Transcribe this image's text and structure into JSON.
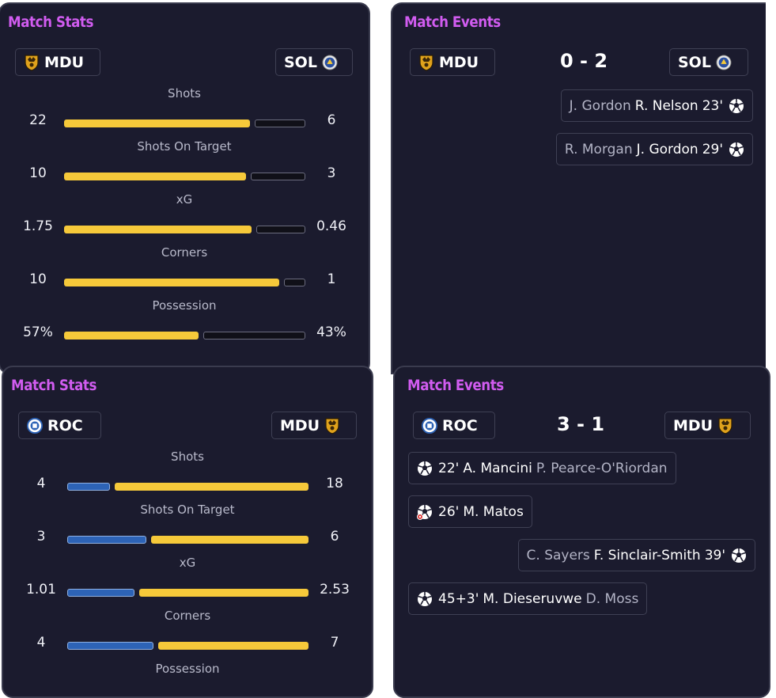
{
  "colors": {
    "home_bar": "#f6c93a",
    "away_bar_dark": "#101018",
    "away_bar_blue": "#2d63b6",
    "title": "#d15cf0"
  },
  "panel1": {
    "title": "Match Stats",
    "home_team": "MDU",
    "away_team": "SOL",
    "stats": [
      {
        "label": "Shots",
        "home": "22",
        "away": "6",
        "home_frac": 0.786
      },
      {
        "label": "Shots On Target",
        "home": "10",
        "away": "3",
        "home_frac": 0.769
      },
      {
        "label": "xG",
        "home": "1.75",
        "away": "0.46",
        "home_frac": 0.792
      },
      {
        "label": "Corners",
        "home": "10",
        "away": "1",
        "home_frac": 0.909
      },
      {
        "label": "Possession",
        "home": "57%",
        "away": "43%",
        "home_frac": 0.57
      }
    ]
  },
  "panel2": {
    "title": "Match Events",
    "home_team": "MDU",
    "away_team": "SOL",
    "score": "0 - 2",
    "events": [
      {
        "side": "away",
        "assist": "J. Gordon",
        "scorer": "R. Nelson",
        "minute": "23'",
        "icon": "goal-ball-icon"
      },
      {
        "side": "away",
        "assist": "R. Morgan",
        "scorer": "J. Gordon",
        "minute": "29'",
        "icon": "goal-ball-icon"
      }
    ]
  },
  "panel3": {
    "title": "Match Stats",
    "home_team": "ROC",
    "away_team": "MDU",
    "stats": [
      {
        "label": "Shots",
        "home": "4",
        "away": "18",
        "home_frac": 0.182
      },
      {
        "label": "Shots On Target",
        "home": "3",
        "away": "6",
        "home_frac": 0.333
      },
      {
        "label": "xG",
        "home": "1.01",
        "away": "2.53",
        "home_frac": 0.285
      },
      {
        "label": "Corners",
        "home": "4",
        "away": "7",
        "home_frac": 0.364
      },
      {
        "label": "Possession"
      }
    ]
  },
  "panel4": {
    "title": "Match Events",
    "home_team": "ROC",
    "away_team": "MDU",
    "score": "3 - 1",
    "events": [
      {
        "side": "home",
        "minute": "22'",
        "scorer": "A. Mancini",
        "assist": "P. Pearce-O'Riordan",
        "icon": "goal-ball-icon"
      },
      {
        "side": "home",
        "minute": "26'",
        "scorer": "M. Matos",
        "assist": "",
        "icon": "penalty-goal-icon"
      },
      {
        "side": "away",
        "assist": "C. Sayers",
        "scorer": "F. Sinclair-Smith",
        "minute": "39'",
        "icon": "goal-ball-icon"
      },
      {
        "side": "home",
        "minute": "45+3'",
        "scorer": "M. Dieseruvwe",
        "assist": "D. Moss",
        "icon": "goal-ball-icon"
      }
    ]
  }
}
